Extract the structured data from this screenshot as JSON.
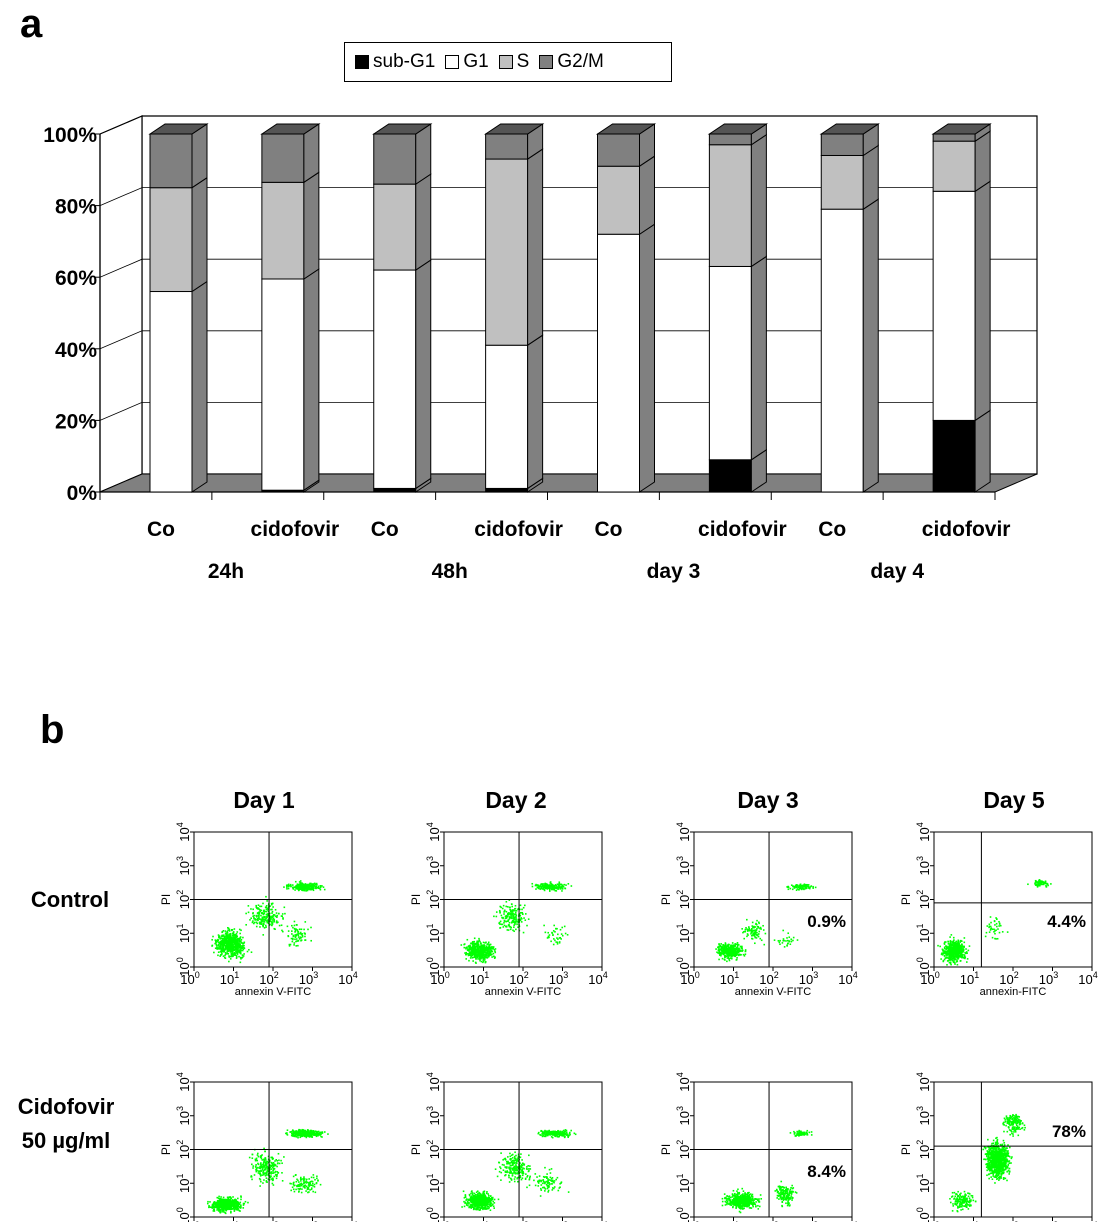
{
  "panel_a_label": "a",
  "panel_b_label": "b",
  "colors": {
    "sub_g1": "#000000",
    "g1": "#ffffff",
    "s": "#c0c0c0",
    "g2m": "#808080",
    "scatter": "#00ff00",
    "floor": "#808080"
  },
  "chart_data": [
    {
      "type": "bar",
      "stacked": true,
      "categories": [
        "Co",
        "cidofovir",
        "Co",
        "cidofovir",
        "Co",
        "cidofovir",
        "Co",
        "cidofovir"
      ],
      "groups": [
        "24h",
        "48h",
        "day 3",
        "day 4"
      ],
      "series": [
        {
          "name": "sub-G1",
          "values": [
            0,
            0.5,
            1,
            1,
            0,
            9,
            0,
            20
          ]
        },
        {
          "name": "G1",
          "values": [
            56,
            59,
            61,
            40,
            72,
            54,
            79,
            64
          ]
        },
        {
          "name": "S",
          "values": [
            29,
            27,
            24,
            52,
            19,
            34,
            15,
            14
          ]
        },
        {
          "name": "G2/M",
          "values": [
            15,
            13.5,
            14,
            7,
            9,
            3,
            6,
            2
          ]
        }
      ],
      "yticks": [
        "0%",
        "20%",
        "40%",
        "60%",
        "80%",
        "100%"
      ],
      "ylim": [
        0,
        100
      ],
      "legend_position": "top-center",
      "grid": true
    },
    {
      "type": "scatter",
      "columns": [
        "Day 1",
        "Day 2",
        "Day 3",
        "Day 5"
      ],
      "rows": [
        "Control",
        "Cidofovir",
        "50 µg/ml"
      ],
      "xlabels": [
        "annexin V-FITC",
        "annexin V-FITC",
        "annexin V-FITC",
        "annexin-FITC"
      ],
      "ylabel": "PI",
      "axis_tick_base": "10",
      "axis_tick_exponents": [
        "0",
        "1",
        "2",
        "3",
        "4"
      ],
      "xlim_log10": [
        0,
        4
      ],
      "ylim_log10": [
        0,
        4
      ],
      "gates": [
        {
          "x_log10": 1.9,
          "y_log10": 2.0
        },
        {
          "x_log10": 1.9,
          "y_log10": 2.0
        },
        {
          "x_log10": 1.9,
          "y_log10": 2.0
        },
        {
          "x_log10": 1.2,
          "y_log10": 1.9
        },
        {
          "x_log10": 1.9,
          "y_log10": 2.0
        },
        {
          "x_log10": 1.9,
          "y_log10": 2.0
        },
        {
          "x_log10": 1.9,
          "y_log10": 2.0
        },
        {
          "x_log10": 1.2,
          "y_log10": 2.1
        }
      ],
      "annotations": [
        "",
        "",
        "0.9%",
        "4.4%",
        "",
        "",
        "8.4%",
        "78%"
      ]
    }
  ]
}
